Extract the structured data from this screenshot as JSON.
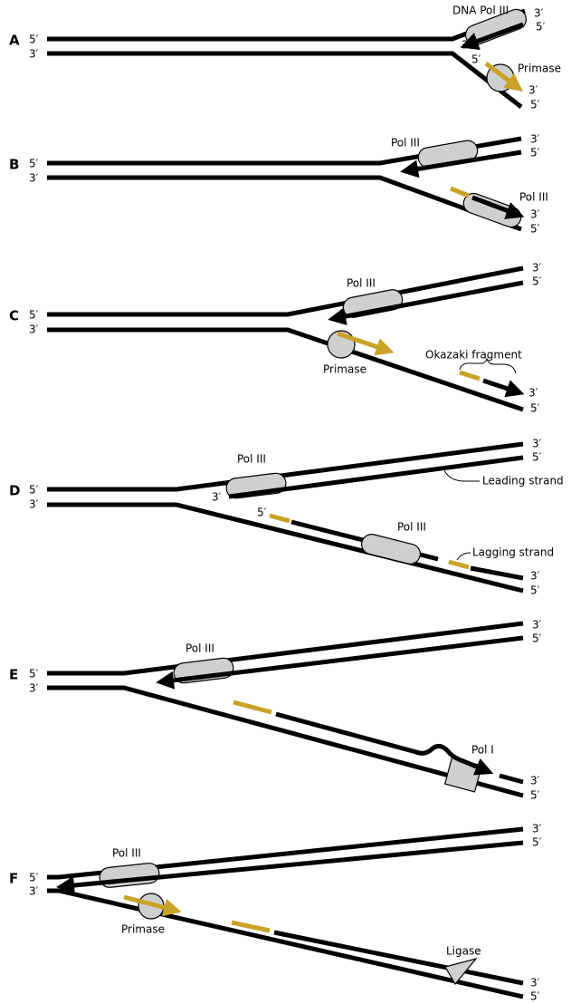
{
  "panels": [
    {
      "label": "A",
      "texts": [
        "5′",
        "3′",
        "DNA Pol III",
        "3′",
        "5′",
        "3′",
        "5′",
        "Primase",
        "3′",
        "5′"
      ]
    },
    {
      "label": "B",
      "texts": [
        "5′",
        "3′",
        "Pol III",
        "3′",
        "5′",
        "Pol III",
        "3′",
        "5′"
      ]
    },
    {
      "label": "C",
      "texts": [
        "5′",
        "3′",
        "Pol III",
        "3′",
        "5′",
        "Primase",
        "Okazaki fragment",
        "3′",
        "5′"
      ]
    },
    {
      "label": "D",
      "texts": [
        "5′",
        "3′",
        "Pol III",
        "3′",
        "3′",
        "5′",
        "Leading strand",
        "5′",
        "Pol III",
        "Lagging strand",
        "3′",
        "5′"
      ]
    },
    {
      "label": "E",
      "texts": [
        "5′",
        "3′",
        "Pol III",
        "3′",
        "5′",
        "Pol I",
        "3′",
        "5′"
      ]
    },
    {
      "label": "F",
      "texts": [
        "5′",
        "3′",
        "Pol III",
        "3′",
        "5′",
        "Primase",
        "Ligase",
        "3′",
        "5′"
      ]
    }
  ]
}
